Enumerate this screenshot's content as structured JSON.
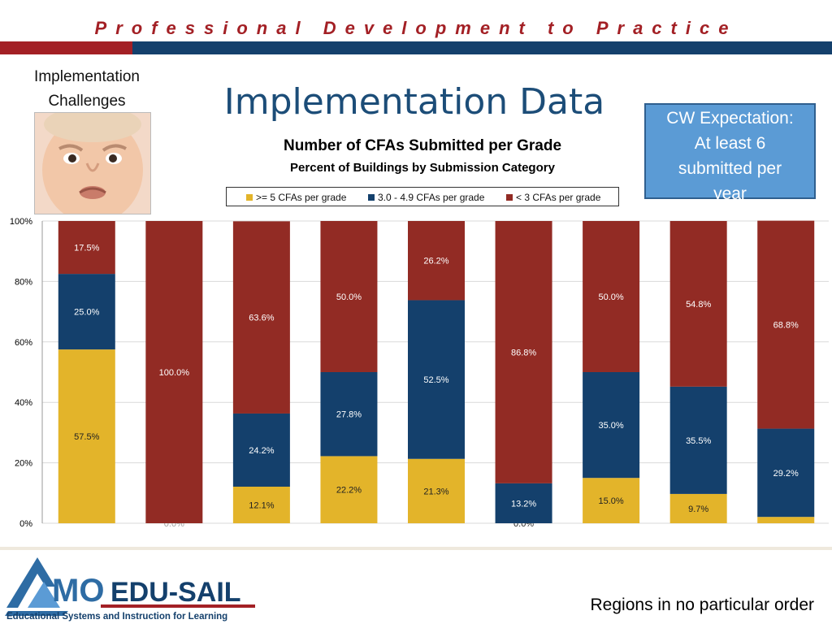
{
  "header": {
    "banner": "Professional Development to Practice",
    "colors": {
      "banner_text": "#a32025",
      "bar_left": "#a32025",
      "bar_right": "#14406c"
    }
  },
  "side": {
    "label_line1": "Implementation",
    "label_line2": "Challenges",
    "photo_icon": "frowning-baby-photo"
  },
  "title": "Implementation Data",
  "expectation": {
    "line1": "CW Expectation:",
    "line2": "At least 6",
    "line3": "submitted per",
    "line4": "year"
  },
  "footer": {
    "logo_text": "MO EDU-SAIL",
    "logo_mo": "MO",
    "logo_rest": "EDU-SAIL",
    "logo_tagline": "Educational Systems and Instruction for Learning",
    "note": "Regions in no particular order"
  },
  "chart_data": {
    "type": "bar",
    "stacked": true,
    "title": "Number of CFAs Submitted per Grade",
    "subtitle": "Percent of Buildings by Submission Category",
    "xlabel": "",
    "ylabel": "",
    "ylim": [
      0,
      100
    ],
    "y_ticks": [
      "0%",
      "20%",
      "40%",
      "60%",
      "80%",
      "100%"
    ],
    "grid": true,
    "legend_position": "top",
    "categories": [
      "",
      "",
      "",
      "",
      "",
      "",
      "",
      "",
      ""
    ],
    "series": [
      {
        "name": ">= 5 CFAs per grade",
        "color": "#e3b42a",
        "values": [
          57.5,
          0.0,
          12.1,
          22.2,
          21.3,
          0.0,
          15.0,
          9.7,
          2.1
        ],
        "labels": [
          "57.5%",
          "0.0%",
          "12.1%",
          "22.2%",
          "21.3%",
          "0.0%",
          "15.0%",
          "9.7%",
          "2.1%"
        ]
      },
      {
        "name": "3.0 - 4.9 CFAs per grade",
        "color": "#14406c",
        "values": [
          25.0,
          0.0,
          24.2,
          27.8,
          52.5,
          13.2,
          35.0,
          35.5,
          29.2
        ],
        "labels": [
          "25.0%",
          "",
          "24.2%",
          "27.8%",
          "52.5%",
          "13.2%",
          "35.0%",
          "35.5%",
          "29.2%"
        ]
      },
      {
        "name": "< 3 CFAs per grade",
        "color": "#922b24",
        "values": [
          17.5,
          100.0,
          63.6,
          50.0,
          26.2,
          86.8,
          50.0,
          54.8,
          68.8
        ],
        "labels": [
          "17.5%",
          "100.0%",
          "63.6%",
          "50.0%",
          "26.2%",
          "86.8%",
          "50.0%",
          "54.8%",
          "68.8%"
        ]
      }
    ]
  }
}
